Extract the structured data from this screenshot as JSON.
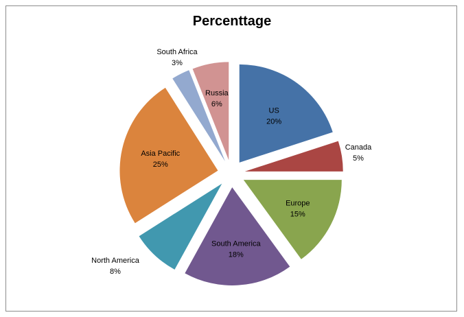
{
  "chart_data": {
    "type": "pie",
    "title": "Percenttage",
    "slices": [
      {
        "label": "US",
        "value": 20,
        "value_label": "20%",
        "color": "#4572A7"
      },
      {
        "label": "Canada",
        "value": 5,
        "value_label": "5%",
        "color": "#AA4643"
      },
      {
        "label": "Europe",
        "value": 15,
        "value_label": "15%",
        "color": "#89A54E"
      },
      {
        "label": "South America",
        "value": 18,
        "value_label": "18%",
        "color": "#71588F"
      },
      {
        "label": "North America",
        "value": 8,
        "value_label": "8%",
        "color": "#4198AF"
      },
      {
        "label": "Asia Pacific",
        "value": 25,
        "value_label": "25%",
        "color": "#DB843D"
      },
      {
        "label": "South Africa",
        "value": 3,
        "value_label": "3%",
        "color": "#93A9CF"
      },
      {
        "label": "Russia",
        "value": 6,
        "value_label": "6%",
        "color": "#D19392"
      }
    ],
    "legend": "none",
    "exploded": true
  }
}
